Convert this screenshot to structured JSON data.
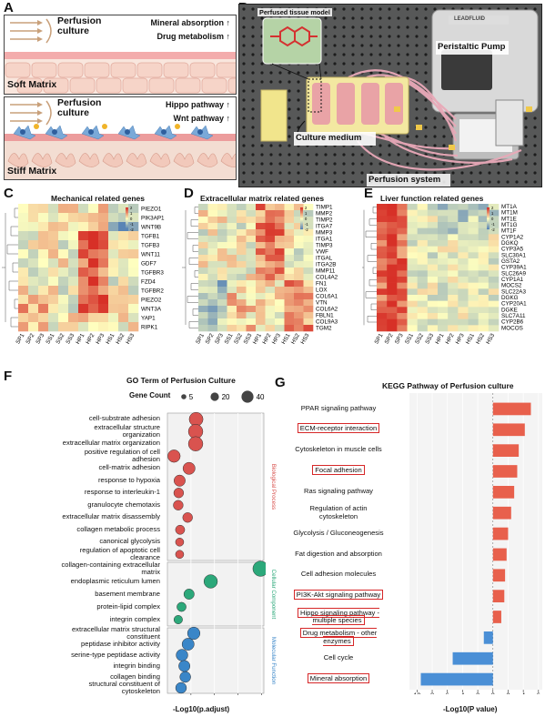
{
  "panels": [
    "A",
    "B",
    "C",
    "D",
    "E",
    "F",
    "G"
  ],
  "panel_a": {
    "soft": {
      "perfusion": "Perfusion\nculture",
      "line1": "Mineral absorption",
      "line2": "Drug metabolism",
      "matrix": "Soft Matrix",
      "arrow": "↑"
    },
    "stiff": {
      "perfusion": "Perfusion\nculture",
      "line1": "Hippo pathway",
      "line2": "Wnt pathway",
      "matrix": "Stiff Matrix",
      "arrow": "↑"
    }
  },
  "panel_b": {
    "inset": "Perfused tissue model",
    "pump": "Peristaltic Pump",
    "medium": "Culture medium",
    "system": "Perfusion system",
    "brand": "LEADFLUID",
    "colors": {
      "bg": "#3b3c3c",
      "plate": "#f1e58c",
      "tube": "#e9a9b8"
    }
  },
  "samples": [
    "SP1",
    "SP2",
    "SP3",
    "SS1",
    "SS2",
    "SS3",
    "HP1",
    "HP2",
    "HP3",
    "HS1",
    "HS2",
    "HS3"
  ],
  "heatmap_c": {
    "title": "Mechanical related genes",
    "genes": [
      "PIEZO1",
      "PIK3AP1",
      "WNT9B",
      "TGFB1",
      "TGFB3",
      "WNT11",
      "GDF7",
      "TGFBR3",
      "FZD4",
      "TGFBR2",
      "PIEZO2",
      "WNT3A",
      "YAP1",
      "RIPK1"
    ],
    "scale": [
      "2",
      "1",
      "0",
      "-1",
      "-2"
    ]
  },
  "heatmap_d": {
    "title": "Extracellular matrix related genes",
    "genes": [
      "TIMP1",
      "MMP2",
      "TIMP2",
      "ITGA7",
      "MMP3",
      "ITGA1",
      "TIMP3",
      "VWF",
      "ITGAL",
      "ITGA2B",
      "MMP11",
      "COL4A2",
      "FN1",
      "LOX",
      "COL6A1",
      "VTN",
      "COL6A2",
      "FBLN1",
      "COL9A3",
      "TGM2"
    ],
    "scale": [
      "2",
      "1",
      "0",
      "-1",
      "-2"
    ]
  },
  "heatmap_e": {
    "title": "Liver function related genes",
    "genes": [
      "MT1A",
      "MT1M",
      "MT1E",
      "MT1G",
      "MT1F",
      "CYP1A2",
      "DGKQ",
      "CYP3A5",
      "SLC30A1",
      "GSTA2",
      "CYP39A1",
      "SLC26A9",
      "CYP1A1",
      "MOCS2",
      "SLC22A3",
      "DGKG",
      "CYP20A1",
      "DGKE",
      "SLC7A11",
      "CYP2B6",
      "MOCOS"
    ],
    "scale": [
      "2",
      "1",
      "0",
      "-1",
      "-2"
    ]
  },
  "colors": {
    "hi": "#d73027",
    "mid": "#ffffbf",
    "lo": "#4575b4",
    "bp": "#d9534f",
    "cc": "#2ca87a",
    "mf": "#3a86c8",
    "pos": "#e8604c",
    "neg": "#4a8fd6"
  },
  "panel_f": {
    "title": "GO Term of Perfusion Culture",
    "legend_title": "Gene Count",
    "legend_values": [
      "5",
      "20",
      "40"
    ],
    "xlabel": "-Log10(p.adjust)",
    "ticks": [
      "5",
      "10",
      "15",
      "20"
    ],
    "groups": {
      "bp": "Biological Process",
      "cc": "Cellular Component",
      "mf": "Molecular Function"
    },
    "terms": [
      {
        "label": "cell-substrate adhesion",
        "x": 6.1,
        "count": 30,
        "g": "bp"
      },
      {
        "label": "extracellular structure\norganization",
        "x": 6.0,
        "count": 34,
        "g": "bp"
      },
      {
        "label": "extracellular matrix organization",
        "x": 6.0,
        "count": 34,
        "g": "bp"
      },
      {
        "label": "positive regulation of cell\nadhesion",
        "x": 1.4,
        "count": 22,
        "g": "bp"
      },
      {
        "label": "cell-matrix adhesion",
        "x": 4.6,
        "count": 20,
        "g": "bp"
      },
      {
        "label": "response to hypoxia",
        "x": 2.6,
        "count": 16,
        "g": "bp"
      },
      {
        "label": "response to interleukin-1",
        "x": 2.4,
        "count": 10,
        "g": "bp"
      },
      {
        "label": "granulocyte chemotaxis",
        "x": 2.3,
        "count": 10,
        "g": "bp"
      },
      {
        "label": "extracellular matrix disassembly",
        "x": 4.3,
        "count": 10,
        "g": "bp"
      },
      {
        "label": "collagen metabolic process",
        "x": 2.7,
        "count": 8,
        "g": "bp"
      },
      {
        "label": "canonical glycolysis",
        "x": 2.6,
        "count": 5,
        "g": "bp"
      },
      {
        "label": "regulation of apoptotic cell\nclearance",
        "x": 2.6,
        "count": 5,
        "g": "bp"
      },
      {
        "label": "collagen-containing extracellular\nmatrix",
        "x": 19.8,
        "count": 40,
        "g": "cc"
      },
      {
        "label": "endoplasmic reticulum lumen",
        "x": 9.2,
        "count": 28,
        "g": "cc"
      },
      {
        "label": "basement membrane",
        "x": 4.6,
        "count": 12,
        "g": "cc"
      },
      {
        "label": "protein-lipid complex",
        "x": 3.0,
        "count": 8,
        "g": "cc"
      },
      {
        "label": "integrin complex",
        "x": 2.3,
        "count": 6,
        "g": "cc"
      },
      {
        "label": "extracellular matrix structural\nconstituent",
        "x": 5.6,
        "count": 22,
        "g": "mf"
      },
      {
        "label": "peptidase inhibitor activity",
        "x": 4.4,
        "count": 20,
        "g": "mf"
      },
      {
        "label": "serine-type peptidase activity",
        "x": 3.1,
        "count": 18,
        "g": "mf"
      },
      {
        "label": "integrin binding",
        "x": 3.6,
        "count": 16,
        "g": "mf"
      },
      {
        "label": "collagen binding",
        "x": 3.8,
        "count": 14,
        "g": "mf"
      },
      {
        "label": "structural constituent of\ncytoskeleton",
        "x": 2.9,
        "count": 14,
        "g": "mf"
      }
    ]
  },
  "chart_data": {
    "type": "bar",
    "title": "KEGG Pathway of Perfusion culture",
    "xlabel": "-Log10(P value)",
    "ticks": [
      "10",
      "8",
      "6",
      "4",
      "2",
      "0",
      "2",
      "4",
      "6"
    ],
    "categories": [
      "PPAR signaling pathway",
      "ECM-receptor interaction",
      "Cytoskeleton in muscle cells",
      "Focal adhesion",
      "Ras signaling pathway",
      "Regulation of actin\ncytoskeleton",
      "Glycolysis / Gluconeogenesis",
      "Fat digestion and absorption",
      "Cell adhesion molecules",
      "PI3K-Akt signaling pathway",
      "Hippo signaling pathway -\nmultiple species",
      "Drug metabolism - other\nenzymes",
      "Cell cycle",
      "Mineral absorption"
    ],
    "values": [
      5.0,
      4.2,
      3.4,
      3.2,
      2.8,
      2.4,
      2.0,
      1.8,
      1.6,
      1.5,
      1.1,
      -1.2,
      -5.3,
      -9.5
    ],
    "highlighted": [
      false,
      true,
      false,
      true,
      false,
      false,
      false,
      false,
      false,
      true,
      true,
      true,
      false,
      true
    ],
    "xlim": [
      -11,
      6.5
    ]
  }
}
